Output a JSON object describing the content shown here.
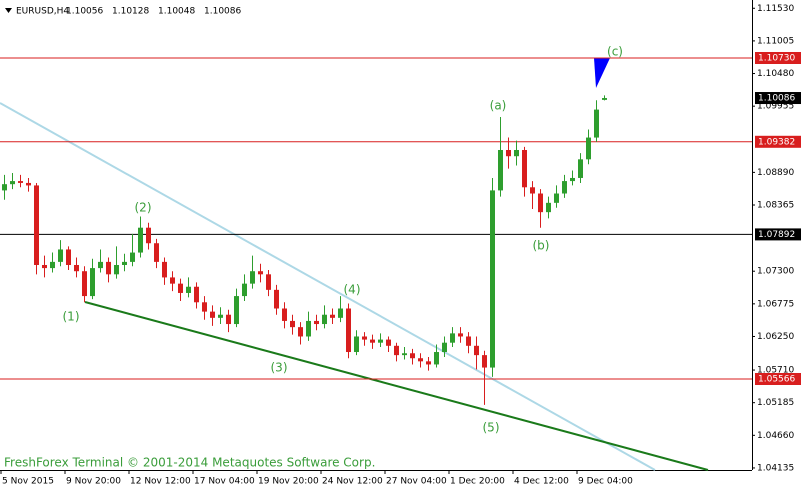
{
  "chart_data": {
    "type": "candlestick",
    "symbol": "EURUSD,H4",
    "footer": "FreshForex Terminal © 2001-2014 Metaquotes Software Corp.",
    "up_color": "#2e9e2e",
    "down_color": "#d81e1e",
    "ylim": [
      1.04102,
      1.11663
    ],
    "yticks": [
      {
        "value": 1.1153,
        "label": "1.11530"
      },
      1.11005,
      {
        "value": 1.1048,
        "label": "1.10480"
      },
      1.09955,
      {
        "value": 1.0889,
        "label": "1.08890"
      },
      1.08365,
      {
        "value": 1.073,
        "label": "1.07300"
      },
      1.06775,
      {
        "value": 1.0625,
        "label": "1.06250"
      },
      {
        "value": 1.0571,
        "label": "1.05710"
      },
      1.05185,
      {
        "value": 1.0466,
        "label": "1.04660"
      },
      1.04135
    ],
    "levels": [
      {
        "value": 1.1073,
        "label": "1.10730",
        "color": "#d81e1e"
      },
      {
        "value": 1.09382,
        "label": "1.09382",
        "color": "#d81e1e"
      },
      {
        "value": 1.07892,
        "label": "1.07892",
        "color": "#000000"
      },
      {
        "value": 1.05566,
        "label": "1.05566",
        "color": "#d81e1e"
      }
    ],
    "x_labels": [
      "5 Nov 2015",
      "9 Nov 20:00",
      "12 Nov 12:00",
      "17 Nov 04:00",
      "19 Nov 20:00",
      "24 Nov 12:00",
      "27 Nov 04:00",
      "1 Dec 20:00",
      "4 Dec 12:00",
      "9 Dec 04:00"
    ],
    "wave_labels": [
      "(c)",
      "(a)",
      "(b)",
      "(2)",
      "(1)",
      "(3)",
      "(4)",
      "(5)"
    ],
    "open": [
      1.086,
      1.087,
      1.0875,
      1.0872,
      1.0868,
      1.074,
      1.0735,
      1.0745,
      1.0765,
      1.074,
      1.073,
      1.069,
      1.0735,
      1.0745,
      1.0725,
      1.074,
      1.0745,
      1.076,
      1.08,
      1.0775,
      1.0745,
      1.072,
      1.071,
      1.0695,
      1.0705,
      1.068,
      1.0665,
      1.0655,
      1.066,
      1.0645,
      1.069,
      1.071,
      1.073,
      1.0725,
      1.07,
      1.067,
      1.065,
      1.064,
      1.0625,
      1.065,
      1.0645,
      1.066,
      1.0655,
      1.067,
      1.06,
      1.0625,
      1.062,
      1.0615,
      1.062,
      1.061,
      1.0595,
      1.0598,
      1.059,
      1.0585,
      1.058,
      1.06,
      1.0615,
      1.063,
      1.0625,
      1.061,
      1.0595,
      1.0575,
      1.086,
      1.0925,
      1.0915,
      1.0925,
      1.0865,
      1.0855,
      1.0825,
      1.084,
      1.0855,
      1.0875,
      1.088,
      1.091,
      1.0945,
      1.10056
    ],
    "high": [
      1.0885,
      1.0888,
      1.0885,
      1.088,
      1.0872,
      1.0755,
      1.076,
      1.078,
      1.077,
      1.0752,
      1.0738,
      1.075,
      1.0765,
      1.0752,
      1.077,
      1.0758,
      1.079,
      1.0818,
      1.0808,
      1.0782,
      1.0752,
      1.073,
      1.0718,
      1.072,
      1.0712,
      1.069,
      1.0675,
      1.0672,
      1.0668,
      1.0702,
      1.0725,
      1.0755,
      1.0742,
      1.0732,
      1.0708,
      1.068,
      1.066,
      1.0648,
      1.0665,
      1.066,
      1.0675,
      1.067,
      1.069,
      1.0678,
      1.0635,
      1.0632,
      1.0628,
      1.063,
      1.0625,
      1.0615,
      1.0608,
      1.0605,
      1.0598,
      1.0592,
      1.0612,
      1.0625,
      1.064,
      1.064,
      1.0632,
      1.0625,
      1.0602,
      1.088,
      1.0978,
      1.0945,
      1.094,
      1.093,
      1.0875,
      1.0862,
      1.085,
      1.0868,
      1.0885,
      1.0892,
      1.092,
      1.0958,
      1.1005,
      1.10128
    ],
    "low": [
      1.0845,
      1.0862,
      1.0865,
      1.0858,
      1.0725,
      1.072,
      1.0728,
      1.0738,
      1.0732,
      1.072,
      1.068,
      1.0685,
      1.0728,
      1.0712,
      1.0718,
      1.073,
      1.0738,
      1.0752,
      1.0765,
      1.0735,
      1.0708,
      1.0698,
      1.0682,
      1.0688,
      1.067,
      1.0652,
      1.0642,
      1.0645,
      1.0632,
      1.064,
      1.0682,
      1.0702,
      1.0712,
      1.069,
      1.066,
      1.0638,
      1.0628,
      1.0612,
      1.0618,
      1.0635,
      1.0638,
      1.0645,
      1.0648,
      1.059,
      1.0595,
      1.061,
      1.0605,
      1.0608,
      1.06,
      1.0585,
      1.0588,
      1.058,
      1.0575,
      1.057,
      1.0575,
      1.0592,
      1.0608,
      1.0615,
      1.0598,
      1.0572,
      1.0515,
      1.056,
      1.085,
      1.0895,
      1.09,
      1.085,
      1.083,
      1.08,
      1.0815,
      1.0832,
      1.0848,
      1.0868,
      1.0872,
      1.0902,
      1.0938,
      1.10048
    ],
    "close": [
      1.087,
      1.0875,
      1.0872,
      1.0868,
      1.074,
      1.0735,
      1.0745,
      1.0765,
      1.074,
      1.073,
      1.069,
      1.0735,
      1.0745,
      1.0725,
      1.074,
      1.0745,
      1.076,
      1.08,
      1.0775,
      1.0745,
      1.072,
      1.071,
      1.0695,
      1.0705,
      1.068,
      1.0665,
      1.0655,
      1.066,
      1.0645,
      1.069,
      1.071,
      1.073,
      1.0725,
      1.07,
      1.067,
      1.065,
      1.064,
      1.0625,
      1.065,
      1.0645,
      1.066,
      1.0655,
      1.067,
      1.06,
      1.0625,
      1.062,
      1.0615,
      1.062,
      1.061,
      1.0595,
      1.0598,
      1.059,
      1.0585,
      1.058,
      1.06,
      1.0615,
      1.063,
      1.0625,
      1.061,
      1.0595,
      1.0575,
      1.086,
      1.0925,
      1.0915,
      1.0925,
      1.0865,
      1.0855,
      1.0825,
      1.084,
      1.0855,
      1.0875,
      1.088,
      1.091,
      1.0945,
      1.099,
      1.10086
    ]
  }
}
